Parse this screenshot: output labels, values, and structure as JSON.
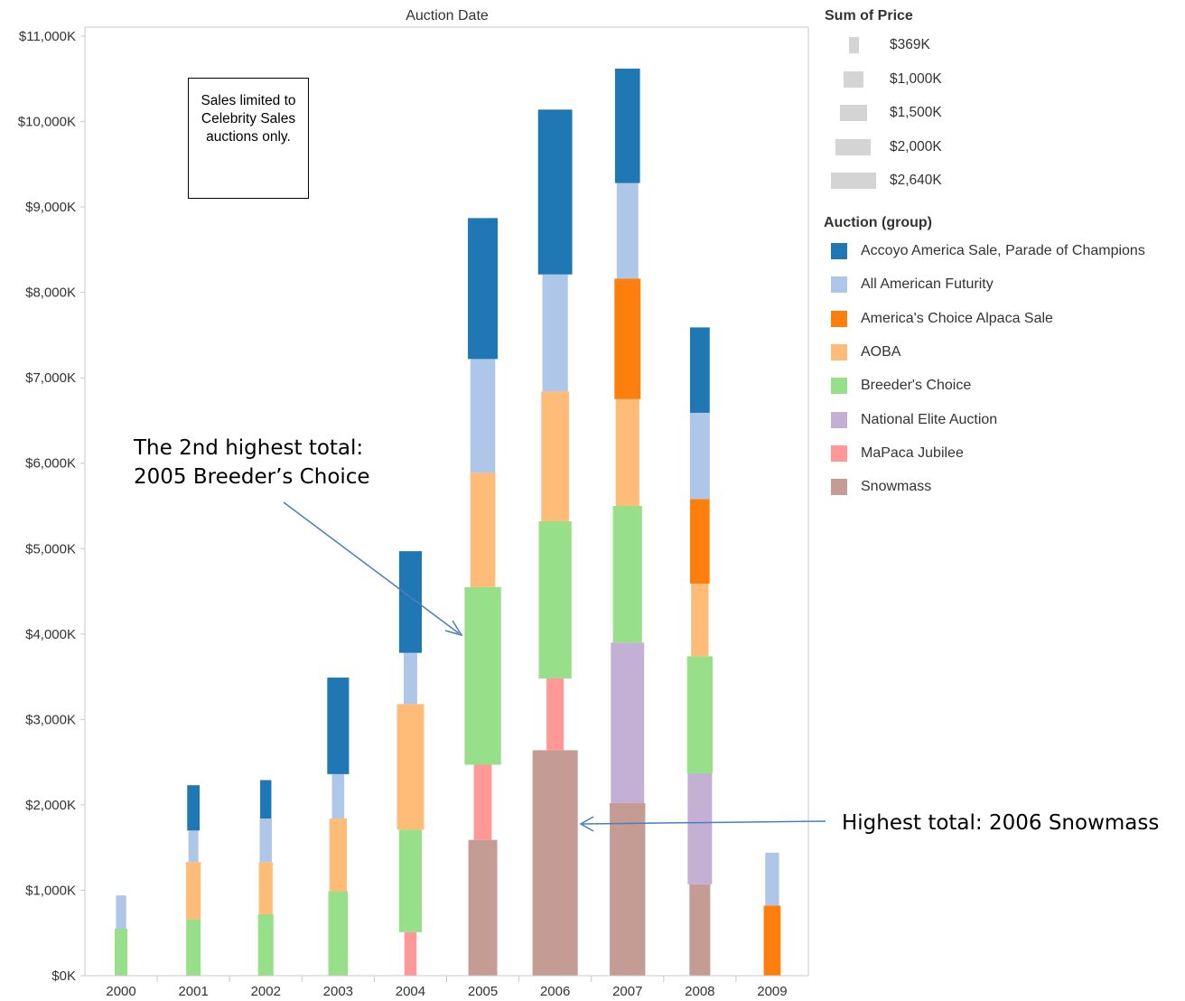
{
  "chart_data": {
    "type": "bar",
    "title": "Auction Date",
    "categories": [
      "2000",
      "2001",
      "2002",
      "2003",
      "2004",
      "2005",
      "2006",
      "2007",
      "2008",
      "2009"
    ],
    "yaxis": {
      "min": 0,
      "max": 11000,
      "ticks": [
        0,
        1000,
        2000,
        3000,
        4000,
        5000,
        6000,
        7000,
        8000,
        9000,
        10000,
        11000
      ],
      "tick_labels": [
        "$0K",
        "$1,000K",
        "$2,000K",
        "$3,000K",
        "$4,000K",
        "$5,000K",
        "$6,000K",
        "$7,000K",
        "$8,000K",
        "$9,000K",
        "$10,000K",
        "$11,000K"
      ]
    },
    "series": [
      {
        "name": "Snowmass",
        "color": "#c49c94",
        "values": [
          0,
          0,
          0,
          0,
          0,
          1590,
          2640,
          2020,
          1070,
          0
        ]
      },
      {
        "name": "MaPaca Jubilee",
        "color": "#ff9896",
        "values": [
          0,
          0,
          0,
          0,
          510,
          880,
          840,
          0,
          0,
          0
        ]
      },
      {
        "name": "National Elite Auction",
        "color": "#c5b0d5",
        "values": [
          0,
          0,
          0,
          0,
          0,
          0,
          0,
          1880,
          1300,
          0
        ]
      },
      {
        "name": "Breeder's Choice",
        "color": "#98df8a",
        "values": [
          550,
          660,
          720,
          990,
          1200,
          2080,
          1840,
          1600,
          1370,
          0
        ]
      },
      {
        "name": "AOBA",
        "color": "#ffbb78",
        "values": [
          0,
          670,
          610,
          850,
          1470,
          1340,
          1520,
          1250,
          850,
          0
        ]
      },
      {
        "name": "America's Choice Alpaca Sale",
        "color": "#ff7f0e",
        "values": [
          0,
          0,
          0,
          0,
          0,
          0,
          0,
          1410,
          990,
          820
        ]
      },
      {
        "name": "All American Futurity",
        "color": "#aec7e8",
        "values": [
          390,
          370,
          510,
          520,
          600,
          1330,
          1370,
          1120,
          1010,
          620
        ]
      },
      {
        "name": "Accoyo America Sale, Parade of Champions",
        "color": "#1f77b4",
        "values": [
          0,
          530,
          450,
          1130,
          1190,
          1650,
          1930,
          1340,
          1000,
          0
        ]
      }
    ],
    "size_legend": {
      "title": "Sum of Price",
      "min": 369,
      "max": 2640,
      "labels": [
        "$369K",
        "$1,000K",
        "$1,500K",
        "$2,000K",
        "$2,640K"
      ],
      "values": [
        369,
        1000,
        1500,
        2000,
        2640
      ]
    },
    "color_legend_title": "Auction (group)"
  },
  "note": {
    "text": "Sales limited to Celebrity Sales auctions only."
  },
  "annotations": {
    "second_line1": "The 2nd highest total:",
    "second_line2": "2005 Breeder’s Choice",
    "highest": "Highest total: 2006 Snowmass"
  }
}
